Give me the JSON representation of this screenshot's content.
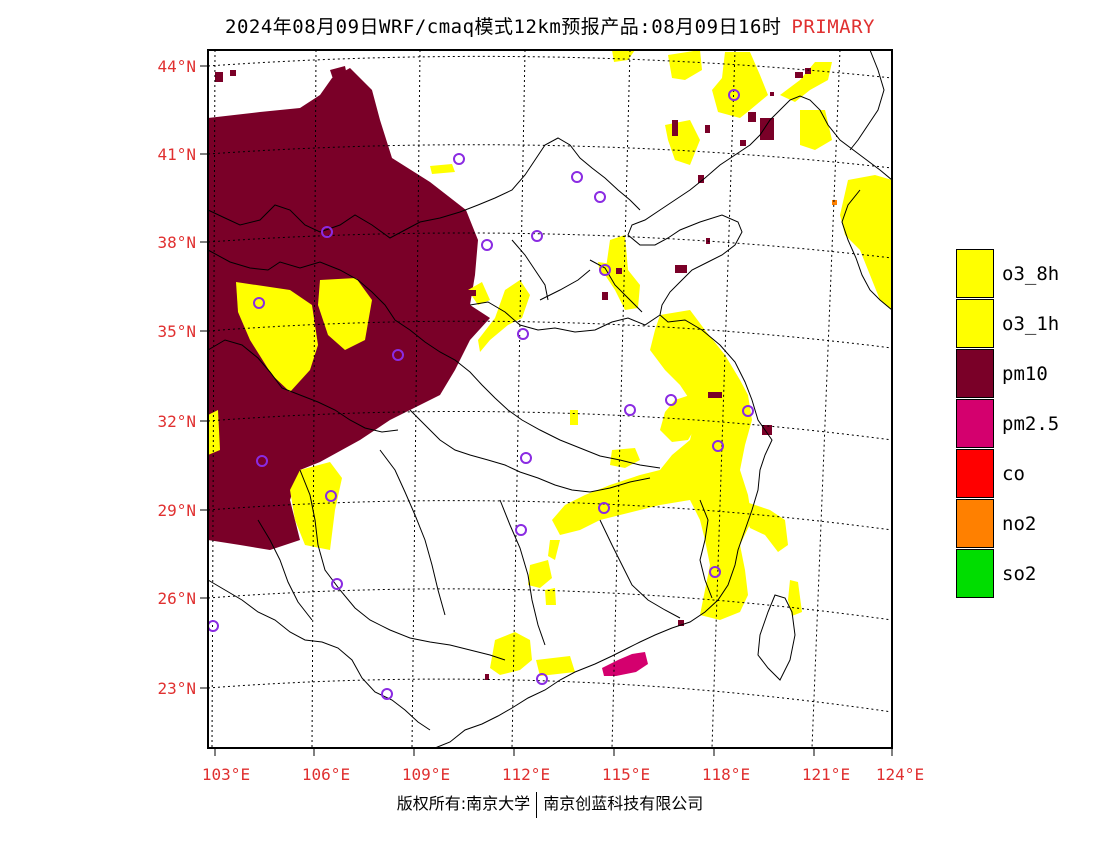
{
  "title": {
    "main": "2024年08月09日WRF/cmaq模式12km预报产品:08月09日16时",
    "tag": "PRIMARY"
  },
  "map": {
    "lat_labels": [
      "44°N",
      "41°N",
      "38°N",
      "35°N",
      "32°N",
      "29°N",
      "26°N",
      "23°N"
    ],
    "lon_labels": [
      "103°E",
      "106°E",
      "109°E",
      "112°E",
      "115°E",
      "118°E",
      "121°E",
      "124°E"
    ],
    "label_color": "#e03030",
    "station_color": "#8a2be2"
  },
  "legend": [
    {
      "label": "o3_8h",
      "color": "#ffff00"
    },
    {
      "label": "o3_1h",
      "color": "#ffff00"
    },
    {
      "label": "pm10",
      "color": "#7a0028"
    },
    {
      "label": "pm2.5",
      "color": "#d4006e"
    },
    {
      "label": "co",
      "color": "#ff0000"
    },
    {
      "label": "no2",
      "color": "#ff8000"
    },
    {
      "label": "so2",
      "color": "#00dd00"
    }
  ],
  "footer": {
    "left": "版权所有:南京大学",
    "right": "南京创蓝科技有限公司"
  }
}
